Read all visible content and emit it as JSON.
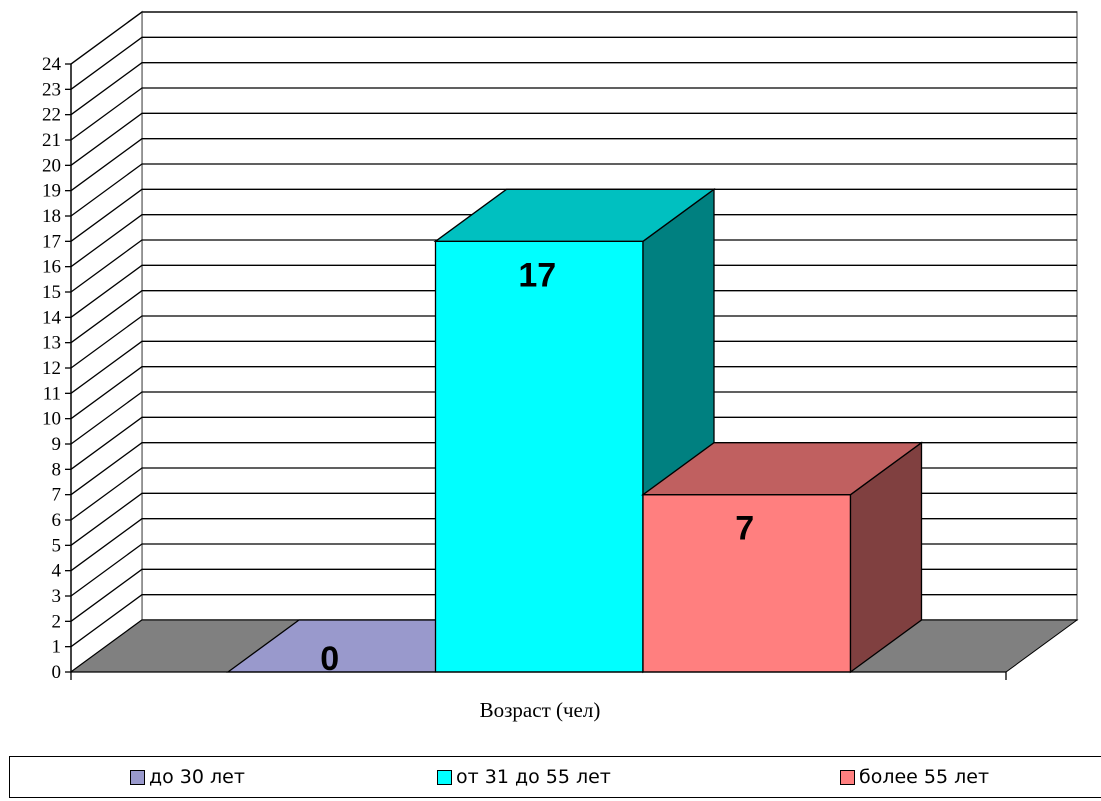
{
  "chart_data": {
    "type": "bar",
    "categories": [
      "до 30 лет",
      "от 31 до 55 лет",
      "более 55 лет"
    ],
    "values": [
      0,
      17,
      7
    ],
    "data_labels": [
      "0",
      "17",
      "7"
    ],
    "title": "",
    "xlabel": "Возраст (чел)",
    "ylabel": "",
    "ylim": [
      0,
      24
    ],
    "yticks": [
      "0",
      "1",
      "2",
      "3",
      "4",
      "5",
      "6",
      "7",
      "8",
      "9",
      "10",
      "11",
      "12",
      "13",
      "14",
      "15",
      "16",
      "17",
      "18",
      "19",
      "20",
      "21",
      "22",
      "23",
      "24"
    ],
    "grid": true,
    "legend_position": "bottom",
    "three_d": true,
    "colors": {
      "front": [
        "#9999cc",
        "#00ffff",
        "#ff7f7f"
      ],
      "top": [
        "#8080b0",
        "#00c0c0",
        "#c06060"
      ],
      "side": [
        "#606090",
        "#008080",
        "#804040"
      ],
      "floor": "#808080",
      "grid": "#000000"
    }
  },
  "legend": [
    {
      "label": "до 30 лет",
      "color": "#9999cc"
    },
    {
      "label": "от 31 до 55 лет",
      "color": "#00ffff"
    },
    {
      "label": "более 55 лет",
      "color": "#ff7f7f"
    }
  ]
}
